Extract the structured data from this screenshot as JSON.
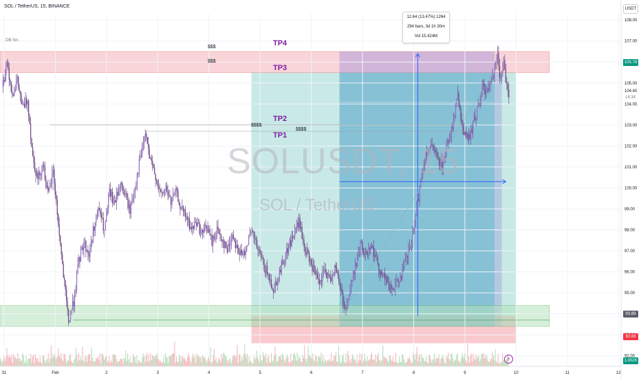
{
  "header": {
    "title": "SOL / TetherUS, 15, BINANCE",
    "currency_button": "USDT"
  },
  "watermark": {
    "symbol": "SOLUSDT, 15",
    "name": "SOL / TetherUS"
  },
  "indicator_label": "OB 5m",
  "measure_tooltip": {
    "line1": "12.64 (13.47%) 1264",
    "line2": "294 bars, 3d 1h 30m",
    "line3": "Vol 15.424M"
  },
  "tp_labels": {
    "tp4": "TP4",
    "tp3": "TP3",
    "tp2": "TP2",
    "tp1": "TP1"
  },
  "dollar_labels": {
    "tp4": "$$$",
    "tp3": "$$$",
    "tp2": "$$$$",
    "tp1": "$$$$"
  },
  "price_badges": {
    "last": {
      "value": "105.78",
      "countdown": "14:34",
      "color": "#089981"
    },
    "cursor": {
      "value": "104.40"
    },
    "green_zone": {
      "value": "93.89",
      "color": "#5d606b"
    },
    "red": {
      "value": "92.83",
      "color": "#f23645"
    },
    "volume": {
      "value": "1.002K",
      "color": "#089981"
    }
  },
  "colors": {
    "candle": "#6e4a86",
    "red_zone": "#f7c6cb",
    "green_zone": "#b6e3bd",
    "target": "#b2dfdb",
    "position": "#5ba7c9",
    "measure": "#2962ff"
  },
  "chart_data": {
    "type": "candlestick",
    "symbol": "SOLUSDT",
    "timeframe": "15",
    "exchange": "BINANCE",
    "y_ticks": [
      92.0,
      93.0,
      94.0,
      95.0,
      96.0,
      97.0,
      98.0,
      99.0,
      100.0,
      101.0,
      102.0,
      103.0,
      104.0,
      105.0,
      106.0,
      107.0,
      108.0
    ],
    "y_tick_labels": [
      "92.00",
      "93.00",
      "94.00",
      "95.00",
      "96.00",
      "97.00",
      "98.00",
      "99.00",
      "100.00",
      "101.00",
      "102.00",
      "103.00",
      "104.00",
      "105.00",
      "106.00",
      "107.00",
      "108.00"
    ],
    "ylim": [
      91.5,
      108.3
    ],
    "x_ticks": [
      {
        "label": "31",
        "t": 0.0
      },
      {
        "label": "Feb",
        "t": 1.0
      },
      {
        "label": "2",
        "t": 2.0
      },
      {
        "label": "3",
        "t": 3.0
      },
      {
        "label": "4",
        "t": 4.0
      },
      {
        "label": "5",
        "t": 5.0
      },
      {
        "label": "6",
        "t": 6.0
      },
      {
        "label": "7",
        "t": 7.0
      },
      {
        "label": "8",
        "t": 8.0
      },
      {
        "label": "9",
        "t": 9.0
      },
      {
        "label": "10",
        "t": 10.0
      },
      {
        "label": "11",
        "t": 11.0
      },
      {
        "label": "12",
        "t": 12.0
      }
    ],
    "xlim": [
      -0.08,
      12.05
    ],
    "price_path": [
      [
        -0.05,
        104.8
      ],
      [
        0.05,
        106.0
      ],
      [
        0.15,
        104.5
      ],
      [
        0.25,
        105.1
      ],
      [
        0.35,
        103.8
      ],
      [
        0.45,
        104.2
      ],
      [
        0.55,
        101.5
      ],
      [
        0.65,
        100.4
      ],
      [
        0.75,
        101.2
      ],
      [
        0.85,
        99.6
      ],
      [
        0.95,
        100.8
      ],
      [
        1.05,
        98.3
      ],
      [
        1.15,
        95.8
      ],
      [
        1.25,
        93.6
      ],
      [
        1.35,
        94.6
      ],
      [
        1.45,
        96.5
      ],
      [
        1.55,
        97.4
      ],
      [
        1.65,
        96.8
      ],
      [
        1.75,
        98.2
      ],
      [
        1.85,
        99.0
      ],
      [
        1.95,
        97.9
      ],
      [
        2.05,
        99.8
      ],
      [
        2.15,
        99.2
      ],
      [
        2.25,
        100.2
      ],
      [
        2.35,
        99.7
      ],
      [
        2.45,
        98.9
      ],
      [
        2.55,
        100.1
      ],
      [
        2.65,
        101.4
      ],
      [
        2.75,
        102.6
      ],
      [
        2.85,
        101.2
      ],
      [
        2.95,
        100.6
      ],
      [
        3.05,
        99.6
      ],
      [
        3.15,
        100.0
      ],
      [
        3.25,
        99.3
      ],
      [
        3.35,
        99.8
      ],
      [
        3.45,
        99.0
      ],
      [
        3.55,
        98.6
      ],
      [
        3.65,
        98.0
      ],
      [
        3.75,
        98.4
      ],
      [
        3.85,
        97.8
      ],
      [
        3.95,
        98.2
      ],
      [
        4.05,
        97.4
      ],
      [
        4.15,
        98.0
      ],
      [
        4.25,
        97.6
      ],
      [
        4.35,
        97.0
      ],
      [
        4.45,
        97.8
      ],
      [
        4.55,
        97.1
      ],
      [
        4.65,
        96.7
      ],
      [
        4.75,
        97.5
      ],
      [
        4.85,
        97.8
      ],
      [
        4.95,
        97.0
      ],
      [
        5.05,
        96.4
      ],
      [
        5.15,
        95.8
      ],
      [
        5.25,
        95.2
      ],
      [
        5.35,
        95.8
      ],
      [
        5.45,
        96.6
      ],
      [
        5.55,
        97.2
      ],
      [
        5.65,
        97.8
      ],
      [
        5.75,
        98.4
      ],
      [
        5.85,
        97.2
      ],
      [
        5.95,
        96.6
      ],
      [
        6.05,
        96.0
      ],
      [
        6.15,
        95.3
      ],
      [
        6.25,
        96.1
      ],
      [
        6.35,
        95.6
      ],
      [
        6.45,
        96.2
      ],
      [
        6.55,
        95.4
      ],
      [
        6.65,
        94.2
      ],
      [
        6.75,
        95.1
      ],
      [
        6.85,
        96.3
      ],
      [
        6.95,
        97.3
      ],
      [
        7.05,
        96.8
      ],
      [
        7.15,
        97.4
      ],
      [
        7.25,
        96.6
      ],
      [
        7.35,
        96.0
      ],
      [
        7.45,
        95.6
      ],
      [
        7.55,
        95.1
      ],
      [
        7.65,
        95.4
      ],
      [
        7.75,
        95.9
      ],
      [
        7.85,
        96.6
      ],
      [
        7.95,
        97.4
      ],
      [
        8.05,
        98.9
      ],
      [
        8.15,
        100.7
      ],
      [
        8.25,
        101.8
      ],
      [
        8.35,
        101.9
      ],
      [
        8.45,
        101.4
      ],
      [
        8.55,
        101.1
      ],
      [
        8.65,
        102.1
      ],
      [
        8.75,
        103.0
      ],
      [
        8.85,
        104.3
      ],
      [
        8.95,
        102.9
      ],
      [
        9.05,
        102.2
      ],
      [
        9.15,
        103.0
      ],
      [
        9.25,
        103.9
      ],
      [
        9.35,
        104.9
      ],
      [
        9.45,
        104.5
      ],
      [
        9.55,
        105.6
      ],
      [
        9.62,
        106.4
      ],
      [
        9.68,
        105.3
      ],
      [
        9.75,
        106.2
      ],
      [
        9.8,
        105.0
      ],
      [
        9.85,
        104.3
      ]
    ],
    "zones": {
      "red_supply": [
        105.5,
        106.5
      ],
      "green_demand": [
        93.4,
        94.4
      ],
      "target_box": {
        "t": [
          4.83,
          10.0
        ],
        "y": [
          93.4,
          105.5
        ]
      },
      "position_box": {
        "t": [
          6.55,
          9.58
        ],
        "y": [
          93.4,
          105.5
        ]
      },
      "stop_box": {
        "t": [
          4.83,
          10.0
        ],
        "y": [
          92.6,
          93.9
        ]
      }
    },
    "levels": {
      "tp4": 106.5,
      "tp3": 105.5,
      "tp2": 103.0,
      "tp1": 102.7
    },
    "measure": {
      "t1": 6.55,
      "t2": 9.8,
      "y1": 93.9,
      "y2": 106.4,
      "cross_t": 8.08,
      "cross_y": 100.3
    }
  }
}
